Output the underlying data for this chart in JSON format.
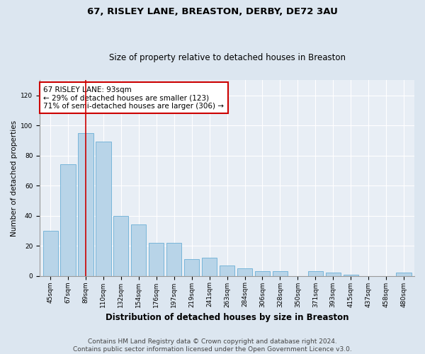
{
  "title": "67, RISLEY LANE, BREASTON, DERBY, DE72 3AU",
  "subtitle": "Size of property relative to detached houses in Breaston",
  "xlabel": "Distribution of detached houses by size in Breaston",
  "ylabel": "Number of detached properties",
  "categories": [
    "45sqm",
    "67sqm",
    "89sqm",
    "110sqm",
    "132sqm",
    "154sqm",
    "176sqm",
    "197sqm",
    "219sqm",
    "241sqm",
    "263sqm",
    "284sqm",
    "306sqm",
    "328sqm",
    "350sqm",
    "371sqm",
    "393sqm",
    "415sqm",
    "437sqm",
    "458sqm",
    "480sqm"
  ],
  "values": [
    30,
    74,
    95,
    89,
    40,
    34,
    22,
    22,
    11,
    12,
    7,
    5,
    3,
    3,
    0,
    3,
    2,
    1,
    0,
    0,
    2
  ],
  "bar_color": "#b8d4e8",
  "bar_edge_color": "#6aaed6",
  "red_line_x": 2,
  "annotation_text": "67 RISLEY LANE: 93sqm\n← 29% of detached houses are smaller (123)\n71% of semi-detached houses are larger (306) →",
  "annotation_box_color": "#ffffff",
  "annotation_box_edge_color": "#cc0000",
  "ylim": [
    0,
    130
  ],
  "yticks": [
    0,
    20,
    40,
    60,
    80,
    100,
    120
  ],
  "background_color": "#dce6f0",
  "plot_background_color": "#e8eef5",
  "footer_text": "Contains HM Land Registry data © Crown copyright and database right 2024.\nContains public sector information licensed under the Open Government Licence v3.0.",
  "title_fontsize": 9.5,
  "subtitle_fontsize": 8.5,
  "xlabel_fontsize": 8.5,
  "ylabel_fontsize": 7.5,
  "tick_fontsize": 6.5,
  "annotation_fontsize": 7.5,
  "footer_fontsize": 6.5
}
